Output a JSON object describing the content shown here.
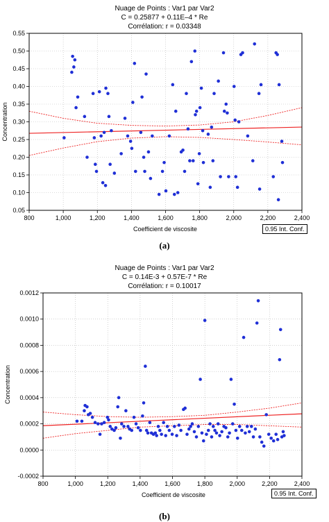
{
  "chart_data": [
    {
      "type": "scatter",
      "panel_label": "(a)",
      "title": "Nuage de Points : Var1 par Var2",
      "subtitle": "C = 0.25877 + 0.11E–4 * Re",
      "annotation": "Corrélation: r = 0.03348",
      "xlabel": "Coefficient de viscosite",
      "ylabel": "Concentration",
      "legend": "0.95 Int. Conf.",
      "legend_position": "bottom-right",
      "xlim": [
        800,
        2400
      ],
      "ylim": [
        0.05,
        0.55
      ],
      "xticks": [
        800,
        1000,
        1200,
        1400,
        1600,
        1800,
        2000,
        2200,
        2400
      ],
      "xtick_labels": [
        "800",
        "1,000",
        "1,200",
        "1,400",
        "1,600",
        "1,800",
        "2,000",
        "2,200",
        "2,400"
      ],
      "yticks": [
        0.05,
        0.1,
        0.15,
        0.2,
        0.25,
        0.3,
        0.35,
        0.4,
        0.45,
        0.5,
        0.55
      ],
      "ytick_labels": [
        "0.05",
        "0.10",
        "0.15",
        "0.20",
        "0.25",
        "0.30",
        "0.35",
        "0.40",
        "0.45",
        "0.50",
        "0.55"
      ],
      "grid": true,
      "fit": {
        "intercept": 0.25877,
        "slope": 1.1e-05,
        "color": "#ee2222"
      },
      "conf_band": {
        "x": [
          800,
          1000,
          1200,
          1400,
          1600,
          1800,
          2000,
          2200,
          2400
        ],
        "upper": [
          0.33,
          0.31,
          0.296,
          0.29,
          0.288,
          0.291,
          0.3,
          0.318,
          0.34
        ],
        "lower": [
          0.205,
          0.226,
          0.244,
          0.254,
          0.258,
          0.256,
          0.25,
          0.243,
          0.235
        ]
      },
      "point_color": "#1f2fd6",
      "points": [
        [
          1005,
          0.255
        ],
        [
          1050,
          0.44
        ],
        [
          1062,
          0.455
        ],
        [
          1068,
          0.475
        ],
        [
          1075,
          0.34
        ],
        [
          1085,
          0.37
        ],
        [
          1055,
          0.485
        ],
        [
          1125,
          0.315
        ],
        [
          1140,
          0.2
        ],
        [
          1175,
          0.38
        ],
        [
          1182,
          0.255
        ],
        [
          1188,
          0.18
        ],
        [
          1195,
          0.16
        ],
        [
          1212,
          0.385
        ],
        [
          1222,
          0.26
        ],
        [
          1232,
          0.128
        ],
        [
          1240,
          0.27
        ],
        [
          1248,
          0.12
        ],
        [
          1250,
          0.395
        ],
        [
          1262,
          0.38
        ],
        [
          1268,
          0.315
        ],
        [
          1275,
          0.18
        ],
        [
          1282,
          0.275
        ],
        [
          1300,
          0.155
        ],
        [
          1340,
          0.21
        ],
        [
          1362,
          0.31
        ],
        [
          1378,
          0.26
        ],
        [
          1395,
          0.245
        ],
        [
          1402,
          0.225
        ],
        [
          1408,
          0.355
        ],
        [
          1418,
          0.465
        ],
        [
          1424,
          0.16
        ],
        [
          1455,
          0.27
        ],
        [
          1462,
          0.37
        ],
        [
          1472,
          0.2
        ],
        [
          1478,
          0.16
        ],
        [
          1486,
          0.435
        ],
        [
          1500,
          0.215
        ],
        [
          1512,
          0.14
        ],
        [
          1522,
          0.26
        ],
        [
          1562,
          0.095
        ],
        [
          1582,
          0.16
        ],
        [
          1592,
          0.185
        ],
        [
          1602,
          0.105
        ],
        [
          1622,
          0.26
        ],
        [
          1642,
          0.405
        ],
        [
          1652,
          0.095
        ],
        [
          1660,
          0.33
        ],
        [
          1672,
          0.1
        ],
        [
          1692,
          0.215
        ],
        [
          1702,
          0.22
        ],
        [
          1712,
          0.16
        ],
        [
          1722,
          0.38
        ],
        [
          1732,
          0.28
        ],
        [
          1742,
          0.19
        ],
        [
          1752,
          0.47
        ],
        [
          1762,
          0.19
        ],
        [
          1772,
          0.5
        ],
        [
          1775,
          0.32
        ],
        [
          1782,
          0.33
        ],
        [
          1790,
          0.125
        ],
        [
          1798,
          0.21
        ],
        [
          1802,
          0.34
        ],
        [
          1810,
          0.395
        ],
        [
          1818,
          0.275
        ],
        [
          1822,
          0.185
        ],
        [
          1850,
          0.265
        ],
        [
          1862,
          0.115
        ],
        [
          1870,
          0.285
        ],
        [
          1878,
          0.19
        ],
        [
          1885,
          0.38
        ],
        [
          1910,
          0.415
        ],
        [
          1922,
          0.145
        ],
        [
          1940,
          0.495
        ],
        [
          1945,
          0.33
        ],
        [
          1955,
          0.35
        ],
        [
          1962,
          0.325
        ],
        [
          1970,
          0.145
        ],
        [
          2002,
          0.4
        ],
        [
          2008,
          0.305
        ],
        [
          2012,
          0.145
        ],
        [
          2022,
          0.115
        ],
        [
          2030,
          0.3
        ],
        [
          2042,
          0.49
        ],
        [
          2052,
          0.495
        ],
        [
          2082,
          0.26
        ],
        [
          2112,
          0.19
        ],
        [
          2122,
          0.52
        ],
        [
          2148,
          0.38
        ],
        [
          2152,
          0.11
        ],
        [
          2160,
          0.405
        ],
        [
          2232,
          0.145
        ],
        [
          2248,
          0.495
        ],
        [
          2256,
          0.49
        ],
        [
          2262,
          0.08
        ],
        [
          2266,
          0.405
        ],
        [
          2282,
          0.245
        ],
        [
          2286,
          0.185
        ]
      ]
    },
    {
      "type": "scatter",
      "panel_label": "(b)",
      "title": "Nuage de Points : Var1 par Var2",
      "subtitle": "C = 0.14E-3 + 0.57E-7 * Re",
      "annotation": "Corrélation: r = 0.10017",
      "xlabel": "Coefficient de viscosite",
      "ylabel": "Concentration",
      "legend": "0.95 Int. Conf.",
      "legend_position": "bottom-right",
      "xlim": [
        800,
        2400
      ],
      "ylim": [
        -0.0002,
        0.0012
      ],
      "xticks": [
        800,
        1000,
        1200,
        1400,
        1600,
        1800,
        2000,
        2200,
        2400
      ],
      "xtick_labels": [
        "800",
        "1,000",
        "1,200",
        "1,400",
        "1,600",
        "1,800",
        "2,000",
        "2,200",
        "2,400"
      ],
      "yticks": [
        -0.0002,
        0.0,
        0.0002,
        0.0004,
        0.0006,
        0.0008,
        0.001,
        0.0012
      ],
      "ytick_labels": [
        "-0.0002",
        "0.0000",
        "0.0002",
        "0.0004",
        "0.0006",
        "0.0008",
        "0.0010",
        "0.0012"
      ],
      "grid": true,
      "fit": {
        "intercept": 0.00014,
        "slope": 5.7e-08,
        "color": "#ee2222"
      },
      "conf_band": {
        "x": [
          800,
          1000,
          1200,
          1400,
          1600,
          1800,
          2000,
          2200,
          2400
        ],
        "upper": [
          0.00029,
          0.00027,
          0.000255,
          0.00025,
          0.000255,
          0.000265,
          0.00029,
          0.00032,
          0.00036
        ],
        "lower": [
          9e-05,
          0.000125,
          0.00015,
          0.000175,
          0.000185,
          0.000195,
          0.000195,
          0.000185,
          0.000175
        ]
      },
      "point_color": "#1f2fd6",
      "points": [
        [
          1010,
          0.00022
        ],
        [
          1040,
          0.00022
        ],
        [
          1055,
          0.0003
        ],
        [
          1060,
          0.00034
        ],
        [
          1072,
          0.00033
        ],
        [
          1080,
          0.00027
        ],
        [
          1092,
          0.00028
        ],
        [
          1105,
          0.00025
        ],
        [
          1122,
          0.00021
        ],
        [
          1140,
          0.0002
        ],
        [
          1152,
          0.00012
        ],
        [
          1162,
          0.0002
        ],
        [
          1178,
          0.00021
        ],
        [
          1198,
          0.00025
        ],
        [
          1205,
          0.00023
        ],
        [
          1215,
          0.00018
        ],
        [
          1226,
          0.00016
        ],
        [
          1240,
          0.00015
        ],
        [
          1250,
          0.00017
        ],
        [
          1262,
          0.00033
        ],
        [
          1268,
          0.0004
        ],
        [
          1278,
          9e-05
        ],
        [
          1286,
          0.0002
        ],
        [
          1300,
          0.00018
        ],
        [
          1312,
          0.0003
        ],
        [
          1325,
          0.00018
        ],
        [
          1335,
          0.00016
        ],
        [
          1348,
          0.00015
        ],
        [
          1362,
          0.00025
        ],
        [
          1375,
          0.0002
        ],
        [
          1388,
          0.00017
        ],
        [
          1402,
          0.00015
        ],
        [
          1415,
          0.00026
        ],
        [
          1422,
          0.00036
        ],
        [
          1432,
          0.00064
        ],
        [
          1440,
          0.00015
        ],
        [
          1448,
          0.00013
        ],
        [
          1460,
          0.00021
        ],
        [
          1470,
          0.00013
        ],
        [
          1482,
          0.00012
        ],
        [
          1494,
          0.00013
        ],
        [
          1502,
          0.00011
        ],
        [
          1512,
          0.00018
        ],
        [
          1522,
          0.00015
        ],
        [
          1532,
          0.00012
        ],
        [
          1545,
          0.00021
        ],
        [
          1558,
          0.00011
        ],
        [
          1568,
          0.00018
        ],
        [
          1580,
          0.00015
        ],
        [
          1598,
          0.00012
        ],
        [
          1612,
          0.00018
        ],
        [
          1626,
          0.00011
        ],
        [
          1640,
          0.00019
        ],
        [
          1652,
          0.00015
        ],
        [
          1668,
          0.00031
        ],
        [
          1678,
          0.00032
        ],
        [
          1690,
          0.00012
        ],
        [
          1702,
          0.00016
        ],
        [
          1712,
          0.00018
        ],
        [
          1722,
          0.0002
        ],
        [
          1735,
          0.00014
        ],
        [
          1748,
          0.0001
        ],
        [
          1760,
          0.00018
        ],
        [
          1772,
          0.00054
        ],
        [
          1782,
          0.00013
        ],
        [
          1792,
          7e-05
        ],
        [
          1800,
          0.00099
        ],
        [
          1810,
          0.00012
        ],
        [
          1822,
          0.00015
        ],
        [
          1832,
          0.0002
        ],
        [
          1842,
          0.0001
        ],
        [
          1852,
          0.00018
        ],
        [
          1862,
          0.00015
        ],
        [
          1872,
          0.00013
        ],
        [
          1882,
          0.0002
        ],
        [
          1892,
          0.00011
        ],
        [
          1905,
          0.00014
        ],
        [
          1918,
          0.00018
        ],
        [
          1930,
          0.00017
        ],
        [
          1942,
          0.0001
        ],
        [
          1952,
          0.00013
        ],
        [
          1962,
          0.00054
        ],
        [
          1972,
          0.0002
        ],
        [
          1982,
          0.00035
        ],
        [
          1992,
          0.00015
        ],
        [
          2002,
          9e-05
        ],
        [
          2015,
          0.00018
        ],
        [
          2028,
          0.00015
        ],
        [
          2040,
          0.00086
        ],
        [
          2050,
          0.00013
        ],
        [
          2062,
          0.00018
        ],
        [
          2075,
          0.00014
        ],
        [
          2088,
          0.00018
        ],
        [
          2100,
          0.0001
        ],
        [
          2112,
          0.00016
        ],
        [
          2122,
          0.00097
        ],
        [
          2130,
          0.00114
        ],
        [
          2140,
          0.0001
        ],
        [
          2152,
          6e-05
        ],
        [
          2165,
          3e-05
        ],
        [
          2180,
          0.00027
        ],
        [
          2195,
          0.00012
        ],
        [
          2210,
          9e-05
        ],
        [
          2225,
          7e-05
        ],
        [
          2240,
          0.00012
        ],
        [
          2250,
          8e-05
        ],
        [
          2262,
          0.00069
        ],
        [
          2268,
          0.00092
        ],
        [
          2276,
          0.0001
        ],
        [
          2284,
          0.00014
        ],
        [
          2290,
          0.00011
        ]
      ]
    }
  ]
}
